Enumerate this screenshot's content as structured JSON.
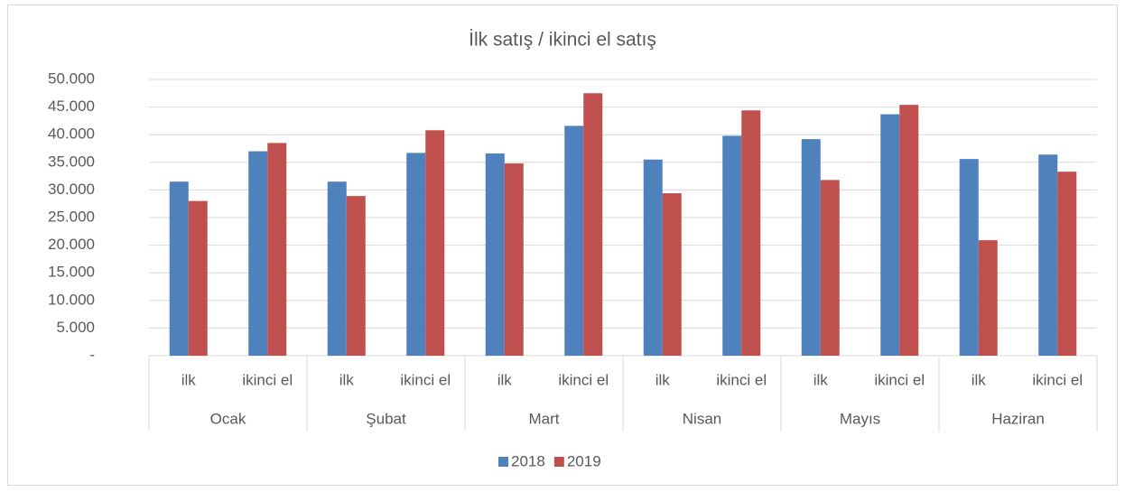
{
  "chart_data": {
    "type": "bar",
    "title": "İlk satış / ikinci el satış",
    "categories": [
      "ilk",
      "ikinci el",
      "ilk",
      "ikinci el",
      "ilk",
      "ikinci el",
      "ilk",
      "ikinci el",
      "ilk",
      "ikinci el",
      "ilk",
      "ikinci el"
    ],
    "category_groups": [
      "Ocak",
      "Şubat",
      "Mart",
      "Nisan",
      "Mayıs",
      "Haziran"
    ],
    "series": [
      {
        "name": "2018",
        "color": "#4f81bd",
        "values": [
          31500,
          37000,
          31500,
          36700,
          36600,
          41600,
          35500,
          39800,
          39200,
          43700,
          35600,
          36400
        ]
      },
      {
        "name": "2019",
        "color": "#c0504d",
        "values": [
          28000,
          38500,
          28900,
          40800,
          34800,
          47500,
          29400,
          44400,
          31800,
          45400,
          20900,
          33300
        ]
      }
    ],
    "ylim": [
      0,
      50000
    ],
    "yticks": [
      {
        "value": 0,
        "label": "-"
      },
      {
        "value": 5000,
        "label": "5.000"
      },
      {
        "value": 10000,
        "label": "10.000"
      },
      {
        "value": 15000,
        "label": "15.000"
      },
      {
        "value": 20000,
        "label": "20.000"
      },
      {
        "value": 25000,
        "label": "25.000"
      },
      {
        "value": 30000,
        "label": "30.000"
      },
      {
        "value": 35000,
        "label": "35.000"
      },
      {
        "value": 40000,
        "label": "40.000"
      },
      {
        "value": 45000,
        "label": "45.000"
      },
      {
        "value": 50000,
        "label": "50.000"
      }
    ],
    "grid": true,
    "legend": "bottom"
  }
}
